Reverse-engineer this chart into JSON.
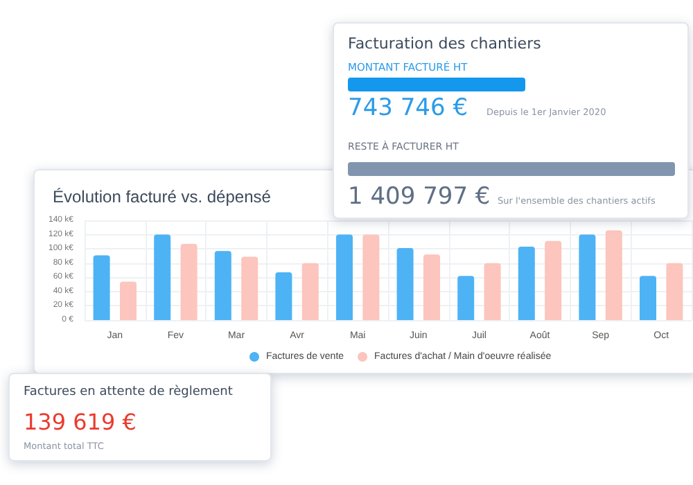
{
  "chart_data": [
    {
      "type": "other",
      "title": "Facturation des chantiers",
      "annotations": [
        "MONTANT FACTURÉ HT",
        "743 746 €",
        "Depuis le 1er Janvier 2020",
        "RESTE À FACTURER HT",
        "1 409 797 €",
        "Sur l'ensemble des chantiers actifs"
      ]
    },
    {
      "type": "bar",
      "title": "Évolution facturé vs. dépensé",
      "categories": [
        "Jan",
        "Fev",
        "Mar",
        "Avr",
        "Mai",
        "Juin",
        "Juil",
        "Août",
        "Sep",
        "Oct"
      ],
      "series": [
        {
          "name": "Factures de vente",
          "color": "#4db3f5",
          "values": [
            91,
            120,
            97,
            67,
            120,
            101,
            62,
            103,
            120,
            62
          ]
        },
        {
          "name": "Factures d'achat / Main d'oeuvre réalisée",
          "color": "#fcc5bd",
          "values": [
            54,
            107,
            89,
            80,
            120,
            92,
            80,
            111,
            126,
            80
          ]
        }
      ],
      "ylim": [
        0,
        140
      ],
      "yticks": [
        {
          "value": 0,
          "label": "0 €"
        },
        {
          "value": 20,
          "label": "20 k€"
        },
        {
          "value": 40,
          "label": "40 k€"
        },
        {
          "value": 60,
          "label": "60 k€"
        },
        {
          "value": 80,
          "label": "80 k€"
        },
        {
          "value": 100,
          "label": "100 k€"
        },
        {
          "value": 120,
          "label": "120 k€"
        },
        {
          "value": 140,
          "label": "140 k€"
        }
      ],
      "grid": true,
      "legend": "bottom",
      "marker": "circle"
    },
    {
      "type": "other",
      "title": "Factures en attente de règlement",
      "annotations": [
        "139 619 €",
        "Montant total TTC"
      ]
    }
  ]
}
